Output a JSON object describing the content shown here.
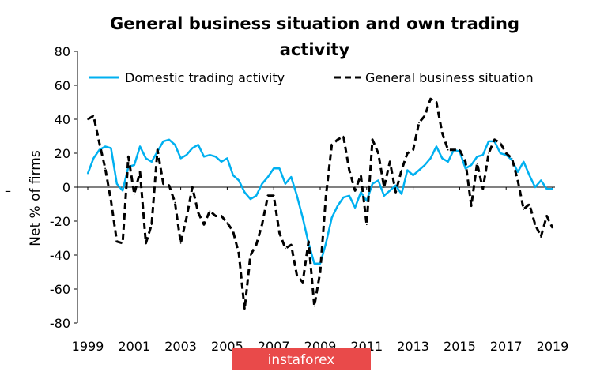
{
  "chart_data": {
    "type": "line",
    "title_lines": [
      "General business situation and own trading",
      "activity"
    ],
    "ylabel": "Net % of firms",
    "xlabel": "",
    "ylim": [
      -80,
      80
    ],
    "yticks": [
      80,
      60,
      40,
      20,
      0,
      -20,
      -40,
      -60,
      -80
    ],
    "yticks_labels": [
      "80",
      "60",
      "40",
      "20",
      "0",
      "-20",
      "-40",
      "-60",
      "-80"
    ],
    "xlim": [
      1999,
      2019.25
    ],
    "xticks": [
      1999,
      2001,
      2003,
      2005,
      2007,
      2009,
      2011,
      2013,
      2015,
      2017,
      2019
    ],
    "xticks_labels": [
      "1999",
      "2001",
      "2003",
      "2005",
      "2007",
      "2009",
      "2011",
      "2013",
      "2015",
      "2017",
      "2019"
    ],
    "grid": false,
    "legend_position": "top",
    "series": [
      {
        "name": "Domestic trading activity",
        "color": "#00b0f0",
        "style": "solid",
        "x": [
          1999.0,
          1999.25,
          1999.5,
          1999.75,
          2000.0,
          2000.25,
          2000.5,
          2000.75,
          2001.0,
          2001.25,
          2001.5,
          2001.75,
          2002.0,
          2002.25,
          2002.5,
          2002.75,
          2003.0,
          2003.25,
          2003.5,
          2003.75,
          2004.0,
          2004.25,
          2004.5,
          2004.75,
          2005.0,
          2005.25,
          2005.5,
          2005.75,
          2006.0,
          2006.25,
          2006.5,
          2006.75,
          2007.0,
          2007.25,
          2007.5,
          2007.75,
          2008.0,
          2008.25,
          2008.5,
          2008.75,
          2009.0,
          2009.25,
          2009.5,
          2009.75,
          2010.0,
          2010.25,
          2010.5,
          2010.75,
          2011.0,
          2011.25,
          2011.5,
          2011.75,
          2012.0,
          2012.25,
          2012.5,
          2012.75,
          2013.0,
          2013.25,
          2013.5,
          2013.75,
          2014.0,
          2014.25,
          2014.5,
          2014.75,
          2015.0,
          2015.25,
          2015.5,
          2015.75,
          2016.0,
          2016.25,
          2016.5,
          2016.75,
          2017.0,
          2017.25,
          2017.5,
          2017.75,
          2018.0,
          2018.25,
          2018.5,
          2018.75,
          2019.0
        ],
        "values": [
          8,
          17,
          22,
          24,
          23,
          2,
          -2,
          12,
          13,
          24,
          17,
          15,
          21,
          27,
          28,
          25,
          17,
          19,
          23,
          25,
          18,
          19,
          18,
          15,
          17,
          7,
          4,
          -3,
          -7,
          -5,
          2,
          6,
          11,
          11,
          2,
          6,
          -5,
          -18,
          -33,
          -45,
          -45,
          -33,
          -18,
          -11,
          -6,
          -5,
          -12,
          -3,
          -8,
          2,
          4,
          -5,
          -2,
          1,
          -4,
          10,
          7,
          10,
          13,
          17,
          24,
          17,
          15,
          22,
          21,
          11,
          13,
          18,
          19,
          27,
          27,
          20,
          19,
          16,
          9,
          15,
          7,
          0,
          4,
          -1,
          -1
        ]
      },
      {
        "name": "General business situation",
        "color": "#000000",
        "style": "dashed",
        "x": [
          1999.0,
          1999.25,
          1999.5,
          1999.75,
          2000.0,
          2000.25,
          2000.5,
          2000.75,
          2001.0,
          2001.25,
          2001.5,
          2001.75,
          2002.0,
          2002.25,
          2002.5,
          2002.75,
          2003.0,
          2003.25,
          2003.5,
          2003.75,
          2004.0,
          2004.25,
          2004.5,
          2004.75,
          2005.0,
          2005.25,
          2005.5,
          2005.75,
          2006.0,
          2006.25,
          2006.5,
          2006.75,
          2007.0,
          2007.25,
          2007.5,
          2007.75,
          2008.0,
          2008.25,
          2008.5,
          2008.75,
          2009.0,
          2009.25,
          2009.5,
          2009.75,
          2010.0,
          2010.25,
          2010.5,
          2010.75,
          2011.0,
          2011.25,
          2011.5,
          2011.75,
          2012.0,
          2012.25,
          2012.5,
          2012.75,
          2013.0,
          2013.25,
          2013.5,
          2013.75,
          2014.0,
          2014.25,
          2014.5,
          2014.75,
          2015.0,
          2015.25,
          2015.5,
          2015.75,
          2016.0,
          2016.25,
          2016.5,
          2016.75,
          2017.0,
          2017.25,
          2017.5,
          2017.75,
          2018.0,
          2018.25,
          2018.5,
          2018.75,
          2019.0
        ],
        "values": [
          40,
          42,
          26,
          11,
          -8,
          -32,
          -33,
          18,
          -4,
          9,
          -33,
          -22,
          22,
          2,
          1,
          -9,
          -33,
          -18,
          0,
          -15,
          -22,
          -14,
          -17,
          -17,
          -21,
          -26,
          -39,
          -72,
          -40,
          -34,
          -22,
          -5,
          -5,
          -27,
          -36,
          -34,
          -52,
          -56,
          -32,
          -70,
          -50,
          -5,
          25,
          28,
          30,
          10,
          -2,
          7,
          -22,
          28,
          20,
          0,
          15,
          -3,
          10,
          20,
          22,
          38,
          42,
          52,
          50,
          32,
          22,
          22,
          22,
          15,
          -11,
          14,
          -1,
          20,
          28,
          26,
          20,
          17,
          4,
          -13,
          -10,
          -22,
          -29,
          -17,
          -24
        ]
      }
    ]
  },
  "watermark": {
    "text": "instaforex",
    "background_color": "#e94a4a"
  },
  "page_marks": {
    "left_dash": "–"
  }
}
